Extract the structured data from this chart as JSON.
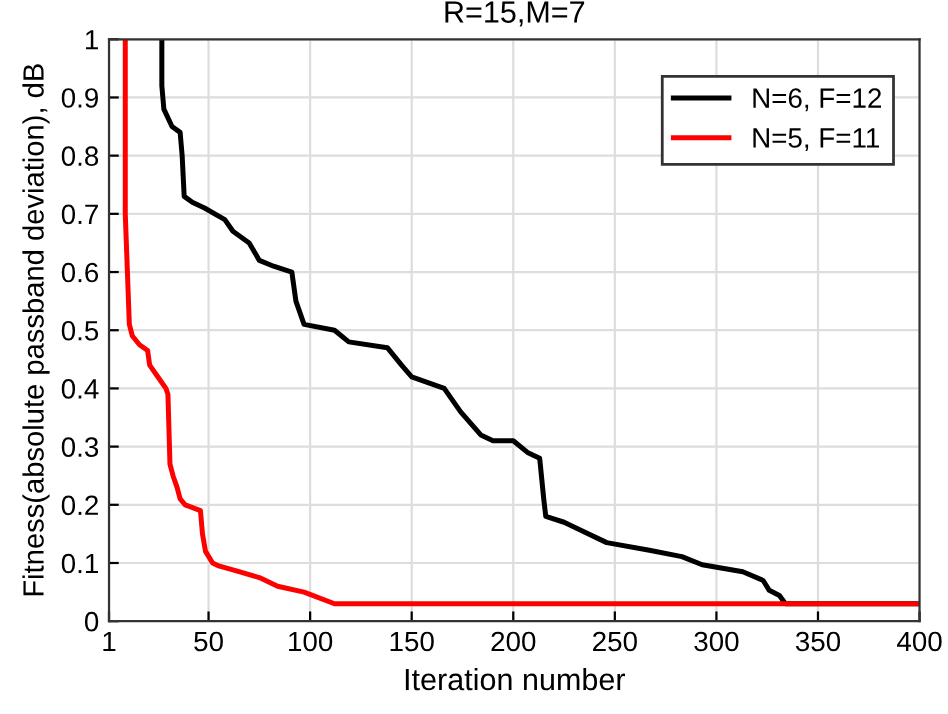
{
  "chart_data": {
    "type": "line",
    "title": "R=15,M=7",
    "xlabel": "Iteration number",
    "ylabel": "Fitness(absolute passband deviation), dB",
    "xlim": [
      1,
      400
    ],
    "xticks": [
      1,
      50,
      100,
      150,
      200,
      250,
      300,
      350,
      400
    ],
    "ylim": [
      0,
      1
    ],
    "yticks": [
      0,
      0.1,
      0.2,
      0.3,
      0.4,
      0.5,
      0.6,
      0.7,
      0.8,
      0.9,
      1
    ],
    "grid": true,
    "legend": "top right",
    "line_style": "solid",
    "marker": "none",
    "series": [
      {
        "name": "N=6, F=12",
        "color": "#000000",
        "x": [
          27,
          27,
          28,
          32,
          36,
          37,
          38,
          42,
          48,
          58,
          62,
          70,
          75,
          82,
          91,
          93,
          97,
          112,
          119,
          138,
          145,
          150,
          166,
          174,
          184,
          190,
          200,
          207,
          213,
          215,
          216,
          225,
          234,
          246,
          267,
          283,
          293,
          313,
          323,
          326,
          331,
          334,
          400
        ],
        "values": [
          1,
          0.92,
          0.88,
          0.85,
          0.84,
          0.8,
          0.73,
          0.72,
          0.71,
          0.69,
          0.67,
          0.65,
          0.62,
          0.61,
          0.6,
          0.55,
          0.51,
          0.5,
          0.48,
          0.47,
          0.44,
          0.42,
          0.4,
          0.36,
          0.32,
          0.31,
          0.31,
          0.29,
          0.28,
          0.21,
          0.18,
          0.17,
          0.155,
          0.135,
          0.122,
          0.111,
          0.097,
          0.085,
          0.07,
          0.053,
          0.044,
          0.03,
          0.03
        ]
      },
      {
        "name": "N=5, F=11",
        "color": "#ff0000",
        "x": [
          9,
          9,
          11,
          12.5,
          16,
          20,
          21,
          25,
          29,
          30,
          31,
          32.5,
          34.5,
          36,
          38.5,
          46,
          47,
          48.5,
          52,
          55,
          65,
          75,
          84,
          97,
          112,
          400
        ],
        "values": [
          1,
          0.7,
          0.51,
          0.49,
          0.475,
          0.465,
          0.44,
          0.42,
          0.4,
          0.39,
          0.27,
          0.25,
          0.23,
          0.21,
          0.2,
          0.19,
          0.15,
          0.12,
          0.1,
          0.095,
          0.085,
          0.075,
          0.06,
          0.05,
          0.03,
          0.03
        ]
      }
    ]
  }
}
